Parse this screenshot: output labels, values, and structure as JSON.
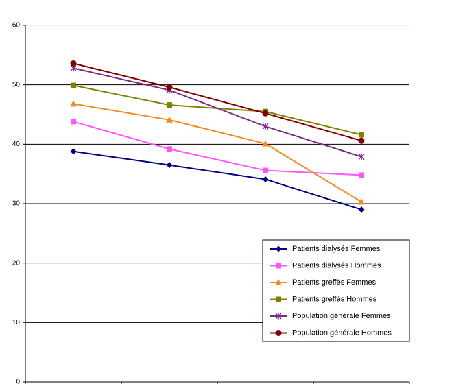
{
  "chart_data": {
    "type": "line",
    "categories": [
      null,
      null,
      null,
      null
    ],
    "series": [
      {
        "name": "Patients dialysés  Femmes",
        "color": "#000080",
        "marker": "diamond",
        "values": [
          38.8,
          36.5,
          34.1,
          29.0
        ]
      },
      {
        "name": "Patients dialysés  Hommes",
        "color": "#ff55ff",
        "marker": "square",
        "values": [
          43.8,
          39.2,
          35.6,
          34.8
        ]
      },
      {
        "name": "Patients greffés  Femmes",
        "color": "#f5891f",
        "marker": "triangle",
        "values": [
          46.8,
          44.1,
          40.1,
          30.3
        ]
      },
      {
        "name": "Patients greffés  Hommes",
        "color": "#808000",
        "marker": "square",
        "values": [
          49.9,
          46.6,
          45.5,
          41.6
        ]
      },
      {
        "name": "Population générale Femmes",
        "color": "#7a2c8a",
        "marker": "star",
        "values": [
          52.8,
          49.1,
          43.0,
          37.9
        ]
      },
      {
        "name": "Population générale  Hommes",
        "color": "#800000",
        "marker": "circle",
        "values": [
          53.6,
          49.6,
          45.2,
          40.6
        ]
      }
    ],
    "ylim": [
      0,
      60
    ],
    "yticks": [
      0,
      10,
      20,
      30,
      40,
      50,
      60
    ],
    "grid": true,
    "legend": "lower right"
  }
}
